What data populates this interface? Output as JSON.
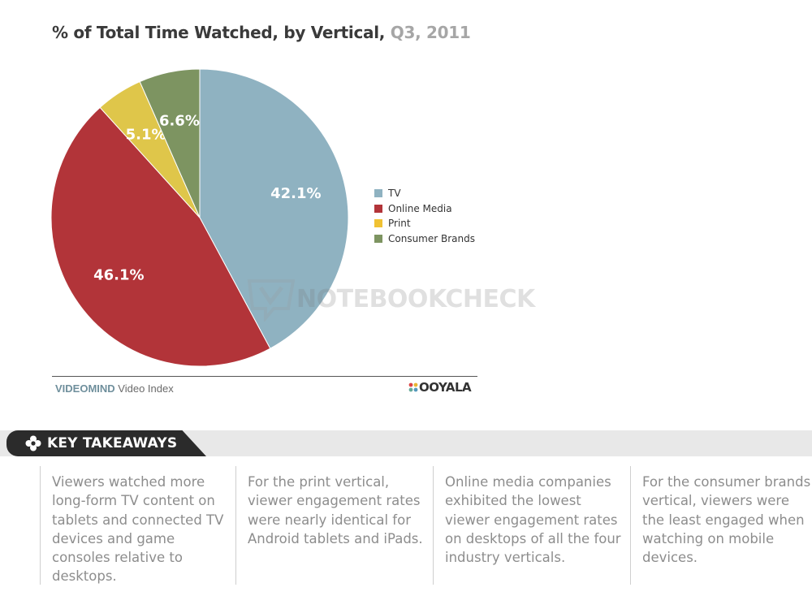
{
  "title": "% of Total Time Watched, by Vertical,",
  "subtitle": "Q3, 2011",
  "chart_data": {
    "type": "pie",
    "title": "% of Total Time Watched, by Vertical, Q3, 2011",
    "categories": [
      "TV",
      "Online Media",
      "Print",
      "Consumer Brands"
    ],
    "values": [
      42.1,
      46.1,
      5.1,
      6.6
    ],
    "labels": [
      "42.1%",
      "46.1%",
      "5.1%",
      "6.6%"
    ],
    "colors": [
      "#8fb2c1",
      "#b23439",
      "#dfc64a",
      "#7d9461"
    ],
    "start_angle_deg": 0,
    "direction": "clockwise",
    "legend": "right"
  },
  "footer": {
    "brand": "VIDEOMIND",
    "index": "Video Index",
    "logo": "OOYALA"
  },
  "watermark": "NOTEBOOKCHECK",
  "takeaways": {
    "heading": "KEY TAKEAWAYS",
    "icon": "flower-icon",
    "items": [
      "Viewers watched more long-form TV content on tablets and connected TV devices and game consoles relative to desktops.",
      "For the print vertical, viewer engagement rates were nearly identical for Android tablets and iPads.",
      "Online media companies exhibited the lowest viewer engagement rates on desktops of all the four industry verticals.",
      "For the consumer brands vertical, viewers were the least engaged when watching on mobile devices."
    ]
  }
}
